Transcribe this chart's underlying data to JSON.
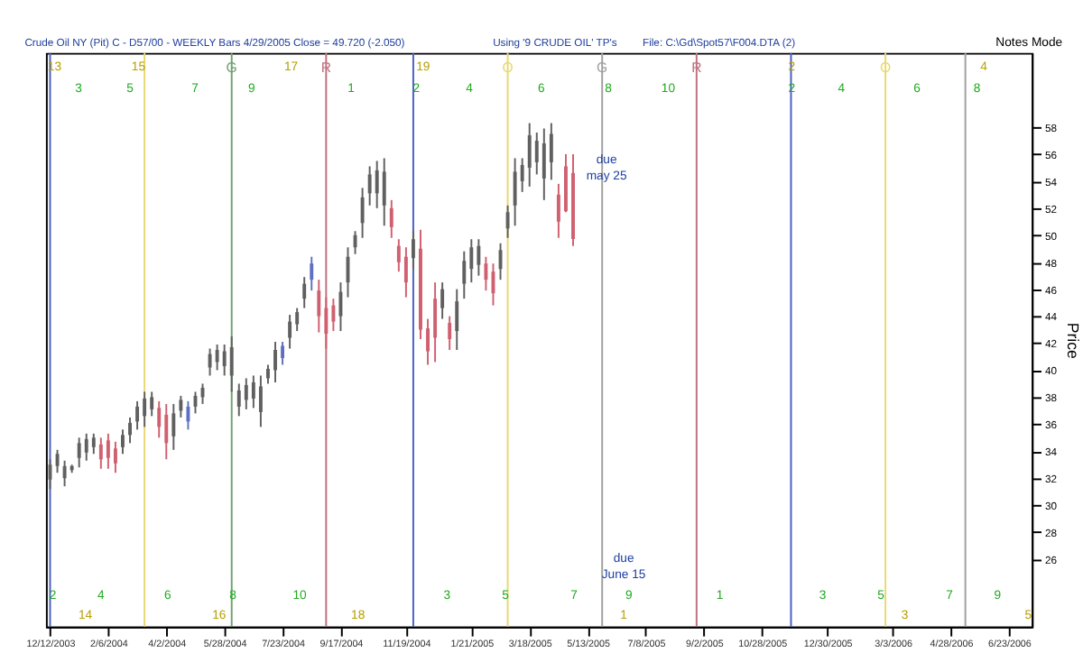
{
  "chart_data": {
    "type": "candlestick",
    "title": "Crude Oil NY (Pit) C - D57/00  - WEEKLY Bars  4/29/2005 Close = 49.720 (-2.050)",
    "ylabel": "Price",
    "x": [
      "2003-12-12",
      "2003-12-19",
      "2003-12-26",
      "2004-01-02",
      "2004-01-09",
      "2004-01-16",
      "2004-01-23",
      "2004-01-30",
      "2004-02-06",
      "2004-02-13",
      "2004-02-20",
      "2004-02-27",
      "2004-03-05",
      "2004-03-12",
      "2004-03-19",
      "2004-03-26",
      "2004-04-02",
      "2004-04-09",
      "2004-04-16",
      "2004-04-23",
      "2004-04-30",
      "2004-05-07",
      "2004-05-14",
      "2004-05-21",
      "2004-05-28",
      "2004-06-04",
      "2004-06-11",
      "2004-06-18",
      "2004-06-25",
      "2004-07-02",
      "2004-07-09",
      "2004-07-16",
      "2004-07-23",
      "2004-07-30",
      "2004-08-06",
      "2004-08-13",
      "2004-08-20",
      "2004-08-27",
      "2004-09-03",
      "2004-09-10",
      "2004-09-17",
      "2004-09-24",
      "2004-10-01",
      "2004-10-08",
      "2004-10-15",
      "2004-10-22",
      "2004-10-29",
      "2004-11-05",
      "2004-11-12",
      "2004-11-19",
      "2004-11-26",
      "2004-12-03",
      "2004-12-10",
      "2004-12-17",
      "2004-12-24",
      "2004-12-31",
      "2005-01-07",
      "2005-01-14",
      "2005-01-21",
      "2005-01-28",
      "2005-02-04",
      "2005-02-11",
      "2005-02-18",
      "2005-02-25",
      "2005-03-04",
      "2005-03-11",
      "2005-03-18",
      "2005-03-25",
      "2005-04-01",
      "2005-04-08",
      "2005-04-15",
      "2005-04-22",
      "2005-04-29"
    ],
    "ohlc": [
      [
        31.9,
        33.4,
        31.2,
        33.0
      ],
      [
        32.9,
        34.1,
        32.4,
        33.8
      ],
      [
        32.0,
        33.3,
        31.4,
        32.9
      ],
      [
        32.6,
        33.0,
        32.4,
        32.9
      ],
      [
        33.5,
        35.0,
        32.8,
        34.6
      ],
      [
        33.9,
        35.3,
        33.3,
        34.9
      ],
      [
        34.3,
        35.3,
        33.8,
        35.0
      ],
      [
        34.5,
        35.0,
        32.7,
        33.4
      ],
      [
        34.8,
        35.3,
        32.7,
        33.5
      ],
      [
        34.2,
        34.7,
        32.4,
        33.1
      ],
      [
        34.3,
        35.6,
        33.8,
        35.2
      ],
      [
        35.2,
        36.5,
        34.6,
        36.1
      ],
      [
        36.2,
        37.7,
        35.6,
        37.3
      ],
      [
        36.6,
        38.4,
        35.8,
        37.9
      ],
      [
        37.1,
        38.4,
        36.6,
        38.0
      ],
      [
        37.2,
        37.7,
        35.0,
        35.8
      ],
      [
        36.7,
        37.5,
        33.4,
        34.6
      ],
      [
        35.1,
        37.5,
        34.1,
        36.8
      ],
      [
        37.0,
        38.1,
        36.5,
        37.8
      ],
      [
        36.2,
        37.7,
        35.6,
        37.3
      ],
      [
        37.3,
        38.4,
        36.8,
        38.1
      ],
      [
        38.0,
        39.0,
        37.5,
        38.7
      ],
      [
        40.2,
        41.6,
        39.6,
        41.2
      ],
      [
        40.6,
        41.9,
        40.0,
        41.5
      ],
      [
        40.3,
        41.9,
        39.6,
        41.4
      ],
      [
        39.6,
        42.5,
        38.4,
        41.7
      ],
      [
        37.3,
        39.0,
        36.6,
        38.5
      ],
      [
        37.8,
        39.4,
        37.1,
        38.9
      ],
      [
        37.9,
        39.6,
        37.2,
        39.1
      ],
      [
        36.9,
        39.6,
        35.8,
        38.8
      ],
      [
        39.4,
        40.4,
        39.0,
        40.1
      ],
      [
        40.0,
        42.1,
        39.1,
        41.5
      ],
      [
        40.9,
        42.1,
        40.4,
        41.8
      ],
      [
        42.4,
        44.1,
        41.6,
        43.6
      ],
      [
        43.4,
        44.6,
        42.9,
        44.3
      ],
      [
        45.3,
        46.9,
        44.6,
        46.4
      ],
      [
        46.7,
        48.4,
        45.9,
        47.9
      ],
      [
        45.9,
        46.7,
        42.8,
        44.0
      ],
      [
        44.6,
        45.4,
        41.6,
        42.7
      ],
      [
        44.8,
        45.3,
        42.9,
        43.6
      ],
      [
        44.0,
        46.5,
        42.9,
        45.8
      ],
      [
        46.5,
        49.1,
        45.4,
        48.4
      ],
      [
        49.1,
        50.3,
        48.6,
        50.0
      ],
      [
        50.9,
        53.5,
        49.8,
        52.8
      ],
      [
        53.1,
        55.1,
        52.2,
        54.5
      ],
      [
        53.1,
        55.5,
        52.0,
        54.8
      ],
      [
        52.2,
        55.7,
        50.7,
        54.7
      ],
      [
        52.0,
        52.6,
        49.8,
        50.6
      ],
      [
        49.2,
        49.7,
        47.3,
        48.0
      ],
      [
        48.4,
        49.1,
        45.4,
        46.5
      ],
      [
        48.3,
        50.3,
        47.5,
        49.7
      ],
      [
        49.0,
        50.4,
        42.3,
        43.0
      ],
      [
        43.1,
        43.8,
        40.4,
        41.4
      ],
      [
        45.3,
        46.5,
        40.6,
        42.4
      ],
      [
        44.6,
        46.5,
        43.8,
        46.0
      ],
      [
        43.5,
        44.0,
        41.5,
        42.3
      ],
      [
        42.9,
        46.0,
        41.5,
        45.1
      ],
      [
        46.4,
        48.8,
        45.3,
        48.1
      ],
      [
        47.5,
        49.7,
        46.5,
        49.1
      ],
      [
        47.8,
        49.7,
        47.0,
        49.2
      ],
      [
        47.9,
        48.4,
        45.9,
        46.7
      ],
      [
        47.3,
        47.9,
        44.8,
        45.7
      ],
      [
        47.5,
        49.4,
        46.7,
        48.9
      ],
      [
        50.5,
        52.2,
        49.8,
        51.7
      ],
      [
        52.2,
        55.7,
        50.7,
        54.7
      ],
      [
        54.0,
        55.7,
        53.2,
        55.2
      ],
      [
        55.0,
        58.3,
        53.6,
        57.4
      ],
      [
        55.4,
        57.6,
        54.5,
        57.0
      ],
      [
        54.2,
        57.9,
        52.6,
        56.8
      ],
      [
        55.4,
        58.3,
        54.1,
        57.5
      ],
      [
        53.0,
        53.8,
        49.8,
        51.0
      ],
      [
        55.1,
        56.0,
        51.7,
        51.77
      ],
      [
        54.6,
        56.0,
        49.2,
        49.72
      ]
    ],
    "colors": [
      "#606060",
      "#606060",
      "#606060",
      "#606060",
      "#606060",
      "#606060",
      "#606060",
      "#d06070",
      "#d06070",
      "#d06070",
      "#606060",
      "#606060",
      "#606060",
      "#606060",
      "#606060",
      "#d06070",
      "#d06070",
      "#606060",
      "#606060",
      "#6070c0",
      "#606060",
      "#606060",
      "#606060",
      "#606060",
      "#606060",
      "#606060",
      "#606060",
      "#606060",
      "#606060",
      "#606060",
      "#606060",
      "#606060",
      "#6070c0",
      "#606060",
      "#606060",
      "#606060",
      "#6070c0",
      "#d06070",
      "#d06070",
      "#d06070",
      "#606060",
      "#606060",
      "#606060",
      "#606060",
      "#606060",
      "#606060",
      "#606060",
      "#d06070",
      "#d06070",
      "#d06070",
      "#606060",
      "#d06070",
      "#d06070",
      "#d06070",
      "#606060",
      "#d06070",
      "#606060",
      "#606060",
      "#606060",
      "#606060",
      "#d06070",
      "#d06070",
      "#606060",
      "#606060",
      "#606060",
      "#606060",
      "#606060",
      "#606060",
      "#606060",
      "#606060",
      "#d06070",
      "#d06070",
      "#d06070"
    ],
    "xlim": [
      "2003-12-08",
      "2006-07-15"
    ],
    "xticks": [
      {
        "value": "2003-12-12",
        "label": "12/12/2003"
      },
      {
        "value": "2004-02-06",
        "label": "2/6/2004"
      },
      {
        "value": "2004-04-02",
        "label": "4/2/2004"
      },
      {
        "value": "2004-05-28",
        "label": "5/28/2004"
      },
      {
        "value": "2004-07-23",
        "label": "7/23/2004"
      },
      {
        "value": "2004-09-17",
        "label": "9/17/2004"
      },
      {
        "value": "2004-11-19",
        "label": "11/19/2004"
      },
      {
        "value": "2005-01-21",
        "label": "1/21/2005"
      },
      {
        "value": "2005-03-18",
        "label": "3/18/2005"
      },
      {
        "value": "2005-05-13",
        "label": "5/13/2005"
      },
      {
        "value": "2005-07-08",
        "label": "7/8/2005"
      },
      {
        "value": "2005-09-02",
        "label": "9/2/2005"
      },
      {
        "value": "2005-10-28",
        "label": "10/28/2005"
      },
      {
        "value": "2005-12-30",
        "label": "12/30/2005"
      },
      {
        "value": "2006-03-03",
        "label": "3/3/2006"
      },
      {
        "value": "2006-04-28",
        "label": "4/28/2006"
      },
      {
        "value": "2006-06-23",
        "label": "6/23/2006"
      }
    ],
    "ylim": [
      21,
      63.5
    ],
    "yticks": [
      26,
      28,
      30,
      32,
      34,
      36,
      38,
      40,
      42,
      44,
      46,
      48,
      50,
      52,
      54,
      56,
      58
    ],
    "grid": false,
    "ref_lines": [
      {
        "axis": "x",
        "value": "2003-12-12",
        "color": "#4a5fc1"
      },
      {
        "axis": "x",
        "value": "2004-03-12",
        "color": "#e8d870"
      },
      {
        "axis": "x",
        "value": "2004-06-04",
        "label": "G",
        "color": "#70a070"
      },
      {
        "axis": "x",
        "value": "2004-09-03",
        "label": "R",
        "color": "#c07080"
      },
      {
        "axis": "x",
        "value": "2004-11-26",
        "color": "#4a5fc1"
      },
      {
        "axis": "x",
        "value": "2005-02-25",
        "label": "O",
        "color": "#e8d870"
      },
      {
        "axis": "x",
        "value": "2005-05-27",
        "label": "G",
        "color": "#a0a0a0"
      },
      {
        "axis": "x",
        "value": "2005-08-26",
        "label": "R",
        "color": "#c07080"
      },
      {
        "axis": "x",
        "value": "2005-11-25",
        "color": "#4a5fc1"
      },
      {
        "axis": "x",
        "value": "2006-02-24",
        "label": "O",
        "color": "#e8d870"
      },
      {
        "axis": "x",
        "value": "2006-05-12",
        "color": "#a0a0a0"
      }
    ],
    "annotations": [
      "Using '9 CRUDE OIL' TP's",
      "File: C:\\Gd\\Spot57\\F004.DTA (2)",
      "Notes Mode",
      "due\nmay 25",
      "due\nJune 15",
      "3",
      "5",
      "7",
      "9",
      "1",
      "2",
      "4",
      "6",
      "8",
      "10",
      "2",
      "4",
      "6",
      "8",
      "2",
      "4",
      "6",
      "8",
      "10",
      "3",
      "5",
      "7",
      "9",
      "1",
      "3",
      "5",
      "7",
      "9",
      "13",
      "15",
      "17",
      "19",
      "2",
      "4",
      "14",
      "16",
      "18",
      "1",
      "3",
      "5"
    ]
  }
}
